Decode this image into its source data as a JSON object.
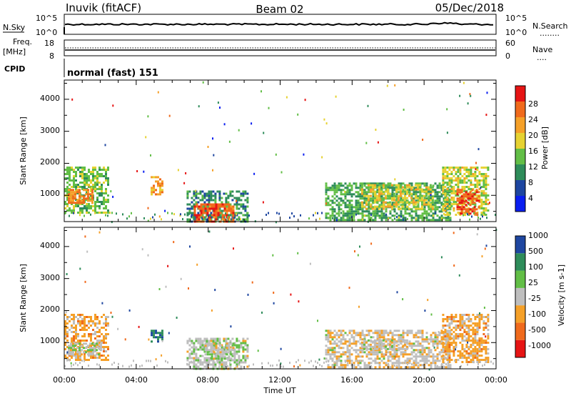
{
  "header": {
    "station": "Inuvik (fitACF)",
    "beam": "Beam 02",
    "date": "05/Dec/2018"
  },
  "top_panels": {
    "nsky_label": "N.Sky",
    "nsearch_label": "N.Search",
    "nsearch_legend": "........",
    "nsky_ticks": [
      "10^5",
      "10^0"
    ],
    "nsearch_ticks": [
      "10^5",
      "10^0"
    ],
    "freq_label_top": "Freq.",
    "freq_label_unit": "[MHz]",
    "freq_ticks": [
      "18",
      "8"
    ],
    "nave_label": "Nave",
    "nave_legend": "....",
    "nave_ticks": [
      "60",
      "0"
    ],
    "cpid_label": "CPID",
    "cpid_value": "normal (fast) 151"
  },
  "colors": {
    "power": [
      "#0a1ef0",
      "#1e46a0",
      "#2e8c5a",
      "#62be46",
      "#e6d232",
      "#f5a028",
      "#f06a1c",
      "#e61414"
    ],
    "velocity": [
      "#e61414",
      "#f06a1c",
      "#f5a028",
      "#bebebe",
      "#62be46",
      "#2e8c5a",
      "#1e46a0"
    ],
    "axis": "#000000"
  },
  "chart_data": [
    {
      "type": "heatmap",
      "panel": "power",
      "ylabel": "Slant Range [km]",
      "ylim": [
        180,
        4600
      ],
      "xlim_hours": [
        0,
        24
      ],
      "y_ticks": [
        "1000",
        "2000",
        "3000",
        "4000"
      ],
      "colorbar_label": "Power [dB]",
      "colorbar_ticks": [
        "4",
        "8",
        "12",
        "16",
        "20",
        "24",
        "28"
      ],
      "colorbar_range": [
        0,
        32
      ],
      "regions": [
        {
          "t": [
            0.0,
            2.4
          ],
          "r": [
            450,
            1900
          ],
          "level": 14
        },
        {
          "t": [
            0.2,
            1.6
          ],
          "r": [
            750,
            1200
          ],
          "level": 24
        },
        {
          "t": [
            4.8,
            5.5
          ],
          "r": [
            1000,
            1600
          ],
          "level": 22
        },
        {
          "t": [
            6.8,
            10.2
          ],
          "r": [
            200,
            1150
          ],
          "level": 10
        },
        {
          "t": [
            7.2,
            9.4
          ],
          "r": [
            200,
            750
          ],
          "level": 27
        },
        {
          "t": [
            14.5,
            21.5
          ],
          "r": [
            200,
            1400
          ],
          "level": 12
        },
        {
          "t": [
            16.5,
            20.5
          ],
          "r": [
            600,
            1350
          ],
          "level": 18
        },
        {
          "t": [
            21.0,
            23.5
          ],
          "r": [
            400,
            1900
          ],
          "level": 17
        },
        {
          "t": [
            21.8,
            23.0
          ],
          "r": [
            400,
            1200
          ],
          "level": 28
        }
      ]
    },
    {
      "type": "heatmap",
      "panel": "velocity",
      "ylabel": "Slant Range [km]",
      "ylim": [
        180,
        4600
      ],
      "xlim_hours": [
        0,
        24
      ],
      "y_ticks": [
        "1000",
        "2000",
        "3000",
        "4000"
      ],
      "colorbar_label": "Velocity [m s-1]",
      "colorbar_ticks": [
        "-1000",
        "-500",
        "-100",
        "-25",
        "25",
        "100",
        "500",
        "1000"
      ],
      "colorbar_range": [
        -1200,
        1200
      ],
      "regions": [
        {
          "t": [
            0.0,
            2.4
          ],
          "r": [
            450,
            1900
          ],
          "level": -300
        },
        {
          "t": [
            0.2,
            2.0
          ],
          "r": [
            600,
            1000
          ],
          "level": 60
        },
        {
          "t": [
            4.8,
            5.5
          ],
          "r": [
            1000,
            1400
          ],
          "level": 800
        },
        {
          "t": [
            6.8,
            10.2
          ],
          "r": [
            200,
            1150
          ],
          "level": 60
        },
        {
          "t": [
            7.8,
            9.4
          ],
          "r": [
            500,
            1000
          ],
          "level": 0
        },
        {
          "t": [
            14.5,
            21.5
          ],
          "r": [
            200,
            1400
          ],
          "level": -80
        },
        {
          "t": [
            16.5,
            19.0
          ],
          "r": [
            800,
            1100
          ],
          "level": 0
        },
        {
          "t": [
            21.0,
            23.5
          ],
          "r": [
            400,
            1900
          ],
          "level": -300
        }
      ]
    }
  ],
  "x_axis": {
    "label": "Time UT",
    "ticks": [
      "00:00",
      "04:00",
      "08:00",
      "12:00",
      "16:00",
      "20:00",
      "00:00"
    ]
  }
}
